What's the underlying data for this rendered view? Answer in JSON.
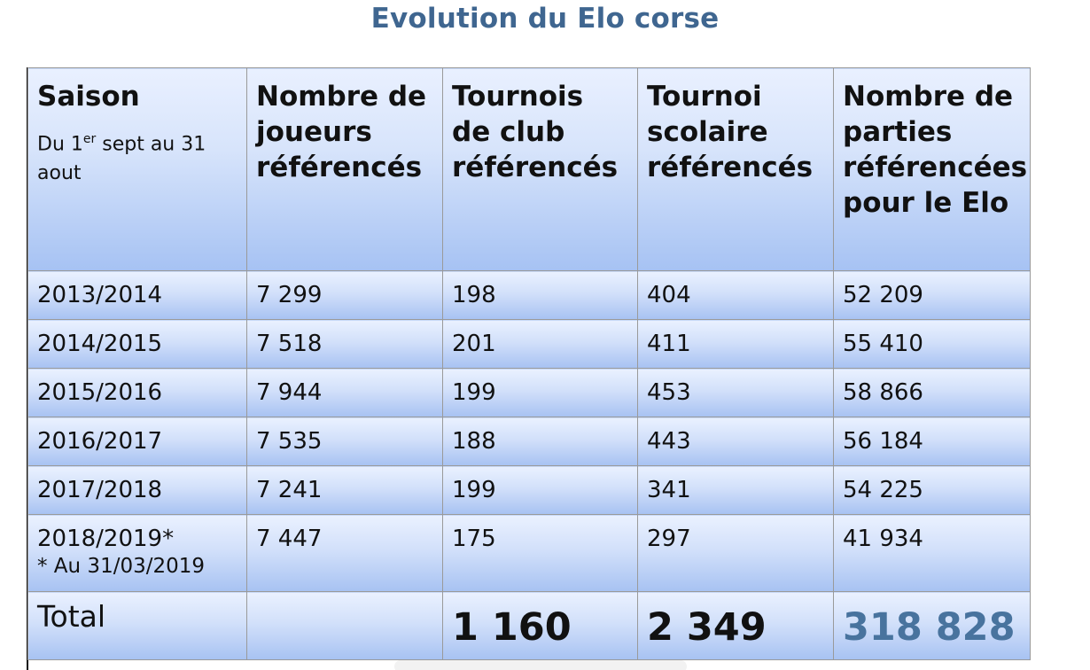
{
  "title": "Evolution du Elo corse",
  "headers": {
    "saison": "Saison",
    "saison_sub_prefix": "Du 1",
    "saison_sub_sup": "er",
    "saison_sub_suffix": " sept au 31 aout",
    "joueurs": "Nombre de joueurs référencés",
    "club": "Tournois de club référencés",
    "scolaire": "Tournoi scolaire référencés",
    "parties": "Nombre de parties référencées pour le Elo"
  },
  "rows": [
    {
      "saison": "2013/2014",
      "joueurs": "7 299",
      "club": "198",
      "scolaire": "404",
      "parties": "52 209"
    },
    {
      "saison": "2014/2015",
      "joueurs": "7 518",
      "club": "201",
      "scolaire": "411",
      "parties": "55 410"
    },
    {
      "saison": "2015/2016",
      "joueurs": "7 944",
      "club": "199",
      "scolaire": "453",
      "parties": "58 866"
    },
    {
      "saison": "2016/2017",
      "joueurs": "7 535",
      "club": "188",
      "scolaire": "443",
      "parties": "56 184"
    },
    {
      "saison": "2017/2018",
      "joueurs": "7 241",
      "club": "199",
      "scolaire": "341",
      "parties": "54 225"
    },
    {
      "saison": "2018/2019*",
      "note": "* Au 31/03/2019",
      "joueurs": "7 447",
      "club": "175",
      "scolaire": "297",
      "parties": "41 934"
    }
  ],
  "total": {
    "label": "Total",
    "joueurs": "",
    "club": "1 160",
    "scolaire": "2 349",
    "parties": "318 828"
  },
  "colors": {
    "title": "#3f6690",
    "total_parties": "#48739e",
    "cell_top": "#eaf1ff",
    "cell_bottom": "#a7c2f2"
  }
}
